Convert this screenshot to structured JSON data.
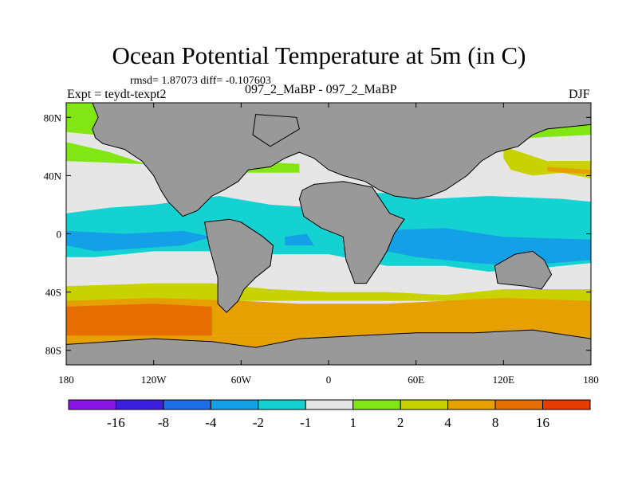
{
  "header": {
    "title": "Ocean Potential Temperature at 5m (in C)",
    "stats": "rmsd= 1.87073 diff= -0.107603",
    "experiment": "Expt = teydt-texpt2",
    "runs": "097_2_MaBP - 097_2_MaBP",
    "season": "DJF"
  },
  "colors": {
    "land": "#999999",
    "bins": [
      "#8a14e6",
      "#3c1ee0",
      "#1e6ee6",
      "#14a0e6",
      "#14d2d2",
      "#e6e6e6",
      "#82e614",
      "#c8d200",
      "#e6a000",
      "#e66e00",
      "#e63c00"
    ]
  },
  "chart_data": {
    "type": "heatmap",
    "projection": "cylindrical-equidistant",
    "xlim": [
      -180,
      180
    ],
    "ylim": [
      -90,
      90
    ],
    "x_ticks": [
      {
        "value": -180,
        "label": "180"
      },
      {
        "value": -120,
        "label": "120W"
      },
      {
        "value": -60,
        "label": "60W"
      },
      {
        "value": 0,
        "label": "0"
      },
      {
        "value": 60,
        "label": "60E"
      },
      {
        "value": 120,
        "label": "120E"
      },
      {
        "value": 180,
        "label": "180"
      }
    ],
    "y_ticks": [
      {
        "value": 80,
        "label": "80N"
      },
      {
        "value": 40,
        "label": "40N"
      },
      {
        "value": 0,
        "label": "0"
      },
      {
        "value": -40,
        "label": "40S"
      },
      {
        "value": -80,
        "label": "80S"
      }
    ],
    "colorbar": {
      "levels": [
        -16,
        -8,
        -4,
        -2,
        -1,
        1,
        2,
        4,
        8,
        16
      ],
      "labels": [
        "-16",
        "-8",
        "-4",
        "-2",
        "-1",
        "1",
        "2",
        "4",
        "8",
        "16"
      ]
    },
    "fields": [
      {
        "bin": 5,
        "points": [
          [
            -180,
            90
          ],
          [
            180,
            90
          ],
          [
            180,
            -90
          ],
          [
            -180,
            -90
          ]
        ]
      },
      {
        "bin": 6,
        "points": [
          [
            -180,
            90
          ],
          [
            180,
            90
          ],
          [
            180,
            68
          ],
          [
            100,
            64
          ],
          [
            60,
            62
          ],
          [
            20,
            66
          ],
          [
            -40,
            70
          ],
          [
            -80,
            66
          ],
          [
            -120,
            64
          ],
          [
            -180,
            70
          ]
        ]
      },
      {
        "bin": 6,
        "points": [
          [
            -180,
            63
          ],
          [
            -150,
            56
          ],
          [
            -120,
            46
          ],
          [
            -60,
            50
          ],
          [
            -20,
            48
          ],
          [
            -20,
            42
          ],
          [
            -60,
            42
          ],
          [
            -130,
            48
          ],
          [
            -180,
            50
          ]
        ]
      },
      {
        "bin": 7,
        "points": [
          [
            120,
            60
          ],
          [
            150,
            50
          ],
          [
            180,
            50
          ],
          [
            180,
            38
          ],
          [
            160,
            42
          ],
          [
            140,
            40
          ],
          [
            125,
            44
          ],
          [
            120,
            52
          ]
        ]
      },
      {
        "bin": 8,
        "points": [
          [
            150,
            46
          ],
          [
            180,
            44
          ],
          [
            180,
            41
          ],
          [
            160,
            42
          ],
          [
            150,
            43
          ]
        ]
      },
      {
        "bin": 4,
        "points": [
          [
            -180,
            14
          ],
          [
            -150,
            18
          ],
          [
            -120,
            20
          ],
          [
            -75,
            26
          ],
          [
            -40,
            20
          ],
          [
            -10,
            18
          ],
          [
            10,
            28
          ],
          [
            40,
            28
          ],
          [
            70,
            24
          ],
          [
            110,
            26
          ],
          [
            160,
            24
          ],
          [
            180,
            22
          ],
          [
            180,
            -20
          ],
          [
            140,
            -24
          ],
          [
            110,
            -26
          ],
          [
            80,
            -22
          ],
          [
            40,
            -22
          ],
          [
            20,
            -18
          ],
          [
            0,
            -14
          ],
          [
            -40,
            -14
          ],
          [
            -80,
            -12
          ],
          [
            -120,
            -12
          ],
          [
            -160,
            -16
          ],
          [
            -180,
            -16
          ]
        ]
      },
      {
        "bin": 3,
        "points": [
          [
            -180,
            2
          ],
          [
            -140,
            0
          ],
          [
            -100,
            2
          ],
          [
            -80,
            -2
          ],
          [
            -100,
            -8
          ],
          [
            -160,
            -12
          ],
          [
            -180,
            -8
          ]
        ]
      },
      {
        "bin": 3,
        "points": [
          [
            30,
            2
          ],
          [
            80,
            4
          ],
          [
            120,
            -2
          ],
          [
            180,
            -4
          ],
          [
            180,
            -18
          ],
          [
            130,
            -22
          ],
          [
            100,
            -20
          ],
          [
            60,
            -16
          ],
          [
            30,
            -10
          ]
        ]
      },
      {
        "bin": 3,
        "points": [
          [
            -30,
            -2
          ],
          [
            -15,
            0
          ],
          [
            -10,
            -8
          ],
          [
            -30,
            -8
          ]
        ]
      },
      {
        "bin": 7,
        "points": [
          [
            -180,
            -36
          ],
          [
            -120,
            -34
          ],
          [
            -80,
            -34
          ],
          [
            -40,
            -38
          ],
          [
            0,
            -40
          ],
          [
            40,
            -40
          ],
          [
            80,
            -42
          ],
          [
            120,
            -38
          ],
          [
            180,
            -38
          ],
          [
            180,
            -46
          ],
          [
            -180,
            -46
          ]
        ]
      },
      {
        "bin": 8,
        "points": [
          [
            -180,
            -46
          ],
          [
            -120,
            -44
          ],
          [
            -60,
            -46
          ],
          [
            -20,
            -48
          ],
          [
            40,
            -48
          ],
          [
            80,
            -46
          ],
          [
            120,
            -44
          ],
          [
            180,
            -46
          ],
          [
            180,
            -70
          ],
          [
            -180,
            -70
          ]
        ]
      },
      {
        "bin": 9,
        "points": [
          [
            -180,
            -50
          ],
          [
            -120,
            -48
          ],
          [
            -80,
            -50
          ],
          [
            -80,
            -70
          ],
          [
            -180,
            -70
          ]
        ]
      },
      {
        "bin": 8,
        "points": [
          [
            -180,
            -70
          ],
          [
            180,
            -70
          ],
          [
            180,
            -90
          ],
          [
            -180,
            -90
          ]
        ]
      }
    ],
    "land": [
      {
        "name": "north-america-asia",
        "points": [
          [
            -162,
            90
          ],
          [
            180,
            90
          ],
          [
            180,
            75
          ],
          [
            150,
            72
          ],
          [
            140,
            68
          ],
          [
            130,
            60
          ],
          [
            115,
            56
          ],
          [
            105,
            50
          ],
          [
            95,
            40
          ],
          [
            80,
            30
          ],
          [
            70,
            26
          ],
          [
            60,
            24
          ],
          [
            45,
            26
          ],
          [
            35,
            30
          ],
          [
            25,
            36
          ],
          [
            10,
            40
          ],
          [
            0,
            44
          ],
          [
            -10,
            52
          ],
          [
            -20,
            56
          ],
          [
            -30,
            52
          ],
          [
            -40,
            46
          ],
          [
            -55,
            44
          ],
          [
            -62,
            36
          ],
          [
            -72,
            30
          ],
          [
            -80,
            26
          ],
          [
            -90,
            16
          ],
          [
            -100,
            12
          ],
          [
            -110,
            22
          ],
          [
            -115,
            30
          ],
          [
            -120,
            40
          ],
          [
            -128,
            50
          ],
          [
            -140,
            58
          ],
          [
            -155,
            62
          ],
          [
            -160,
            66
          ],
          [
            -162,
            72
          ],
          [
            -158,
            80
          ]
        ]
      },
      {
        "name": "south-america",
        "points": [
          [
            -85,
            8
          ],
          [
            -68,
            10
          ],
          [
            -60,
            8
          ],
          [
            -45,
            -2
          ],
          [
            -38,
            -8
          ],
          [
            -40,
            -22
          ],
          [
            -50,
            -30
          ],
          [
            -58,
            -38
          ],
          [
            -62,
            -46
          ],
          [
            -70,
            -54
          ],
          [
            -76,
            -48
          ],
          [
            -76,
            -30
          ],
          [
            -82,
            -8
          ]
        ]
      },
      {
        "name": "africa",
        "points": [
          [
            -18,
            30
          ],
          [
            -10,
            34
          ],
          [
            10,
            36
          ],
          [
            30,
            32
          ],
          [
            42,
            14
          ],
          [
            52,
            10
          ],
          [
            45,
            0
          ],
          [
            40,
            -12
          ],
          [
            34,
            -22
          ],
          [
            26,
            -34
          ],
          [
            18,
            -34
          ],
          [
            12,
            -18
          ],
          [
            10,
            -2
          ],
          [
            -5,
            4
          ],
          [
            -17,
            12
          ],
          [
            -20,
            24
          ]
        ]
      },
      {
        "name": "australia",
        "points": [
          [
            114,
            -22
          ],
          [
            128,
            -14
          ],
          [
            140,
            -12
          ],
          [
            148,
            -18
          ],
          [
            153,
            -28
          ],
          [
            146,
            -38
          ],
          [
            135,
            -36
          ],
          [
            116,
            -34
          ]
        ]
      },
      {
        "name": "antarctica",
        "points": [
          [
            -180,
            -76
          ],
          [
            -150,
            -74
          ],
          [
            -120,
            -72
          ],
          [
            -80,
            -74
          ],
          [
            -50,
            -78
          ],
          [
            -20,
            -72
          ],
          [
            20,
            -70
          ],
          [
            60,
            -68
          ],
          [
            100,
            -68
          ],
          [
            140,
            -66
          ],
          [
            180,
            -72
          ],
          [
            180,
            -90
          ],
          [
            -180,
            -90
          ]
        ]
      },
      {
        "name": "greenland",
        "points": [
          [
            -50,
            82
          ],
          [
            -22,
            80
          ],
          [
            -20,
            72
          ],
          [
            -40,
            60
          ],
          [
            -52,
            68
          ]
        ]
      }
    ]
  }
}
